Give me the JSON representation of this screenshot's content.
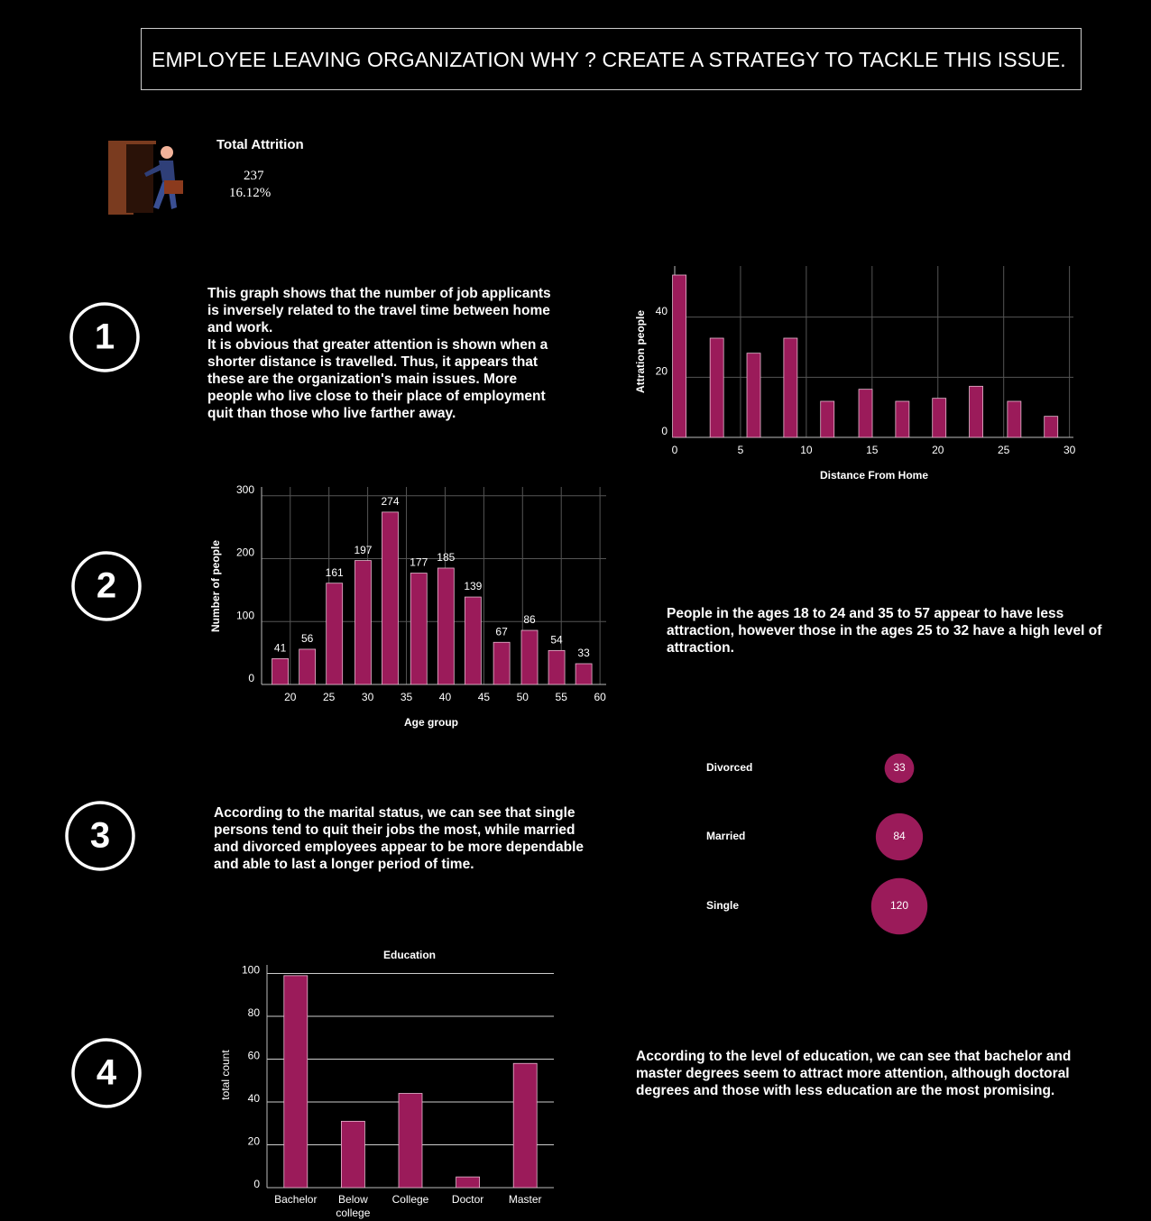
{
  "title": "EMPLOYEE LEAVING ORGANIZATION WHY ? CREATE A STRATEGY TO TACKLE THIS ISSUE.",
  "kpi": {
    "label": "Total Attrition",
    "value": 237,
    "percent": "16.12%"
  },
  "sections": [
    {
      "number": 1,
      "text": [
        "This graph shows that the number of job applicants is inversely related to the travel time between home and work.",
        "It is obvious that greater attention is shown when a shorter distance is travelled. Thus, it appears that these are the organization's main issues. More people who live close to their place of employment quit than those who live farther away."
      ]
    },
    {
      "number": 2,
      "text": [
        "People in the ages 18 to 24 and 35 to 57 appear to have less attraction, however those in the ages 25 to 32 have a high level of attraction."
      ]
    },
    {
      "number": 3,
      "text": [
        "According to the marital status, we can see that single persons tend to quit their jobs the most, while married and divorced employees appear to be more dependable and able to last a longer period of time."
      ]
    },
    {
      "number": 4,
      "text": [
        "According to the level of education, we can see that bachelor and master degrees seem to attract more attention, although doctoral degrees and those with less education are the most promising."
      ]
    }
  ],
  "chart_data": [
    {
      "type": "bar",
      "x_label": "Distance From Home",
      "y_label": "Attration people",
      "x": [
        0.35,
        3.2,
        6.0,
        8.8,
        11.6,
        14.5,
        17.3,
        20.1,
        22.9,
        25.8,
        28.6
      ],
      "values": [
        54,
        33,
        28,
        33,
        12,
        16,
        12,
        13,
        17,
        12,
        7
      ],
      "xlim": [
        0,
        30.3
      ],
      "ylim": [
        0,
        57
      ],
      "xticks": [
        0,
        5,
        10,
        15,
        20,
        25,
        30
      ],
      "yticks": [
        0,
        20,
        40
      ],
      "color": "#9b1b5a",
      "grid": true
    },
    {
      "type": "bar",
      "x_label": "Age group",
      "y_label": "Number of people",
      "x": [
        18.7,
        22.2,
        25.7,
        29.4,
        32.9,
        36.6,
        40.1,
        43.6,
        47.3,
        50.9,
        54.4,
        57.9
      ],
      "values": [
        41,
        56,
        161,
        197,
        274,
        177,
        185,
        139,
        67,
        86,
        54,
        33
      ],
      "xlim": [
        16.3,
        60.8
      ],
      "ylim": [
        0,
        314
      ],
      "xticks": [
        20,
        25,
        30,
        35,
        40,
        45,
        50,
        55,
        60
      ],
      "yticks": [
        0,
        100,
        200,
        300
      ],
      "color": "#9b1b5a",
      "grid": true,
      "data_labels": true
    },
    {
      "type": "bubble",
      "categories": [
        "Divorced",
        "Married",
        "Single"
      ],
      "values": [
        33,
        84,
        120
      ],
      "color": "#9b1b5a"
    },
    {
      "type": "column",
      "title": "Education",
      "y_label": "total count",
      "categories": [
        "Bachelor",
        "Below college",
        "College",
        "Doctor",
        "Master"
      ],
      "values": [
        99,
        31,
        44,
        5,
        58
      ],
      "ylim": [
        0,
        104
      ],
      "yticks": [
        0,
        20,
        40,
        60,
        80,
        100
      ],
      "color": "#9b1b5a",
      "grid": true
    }
  ]
}
